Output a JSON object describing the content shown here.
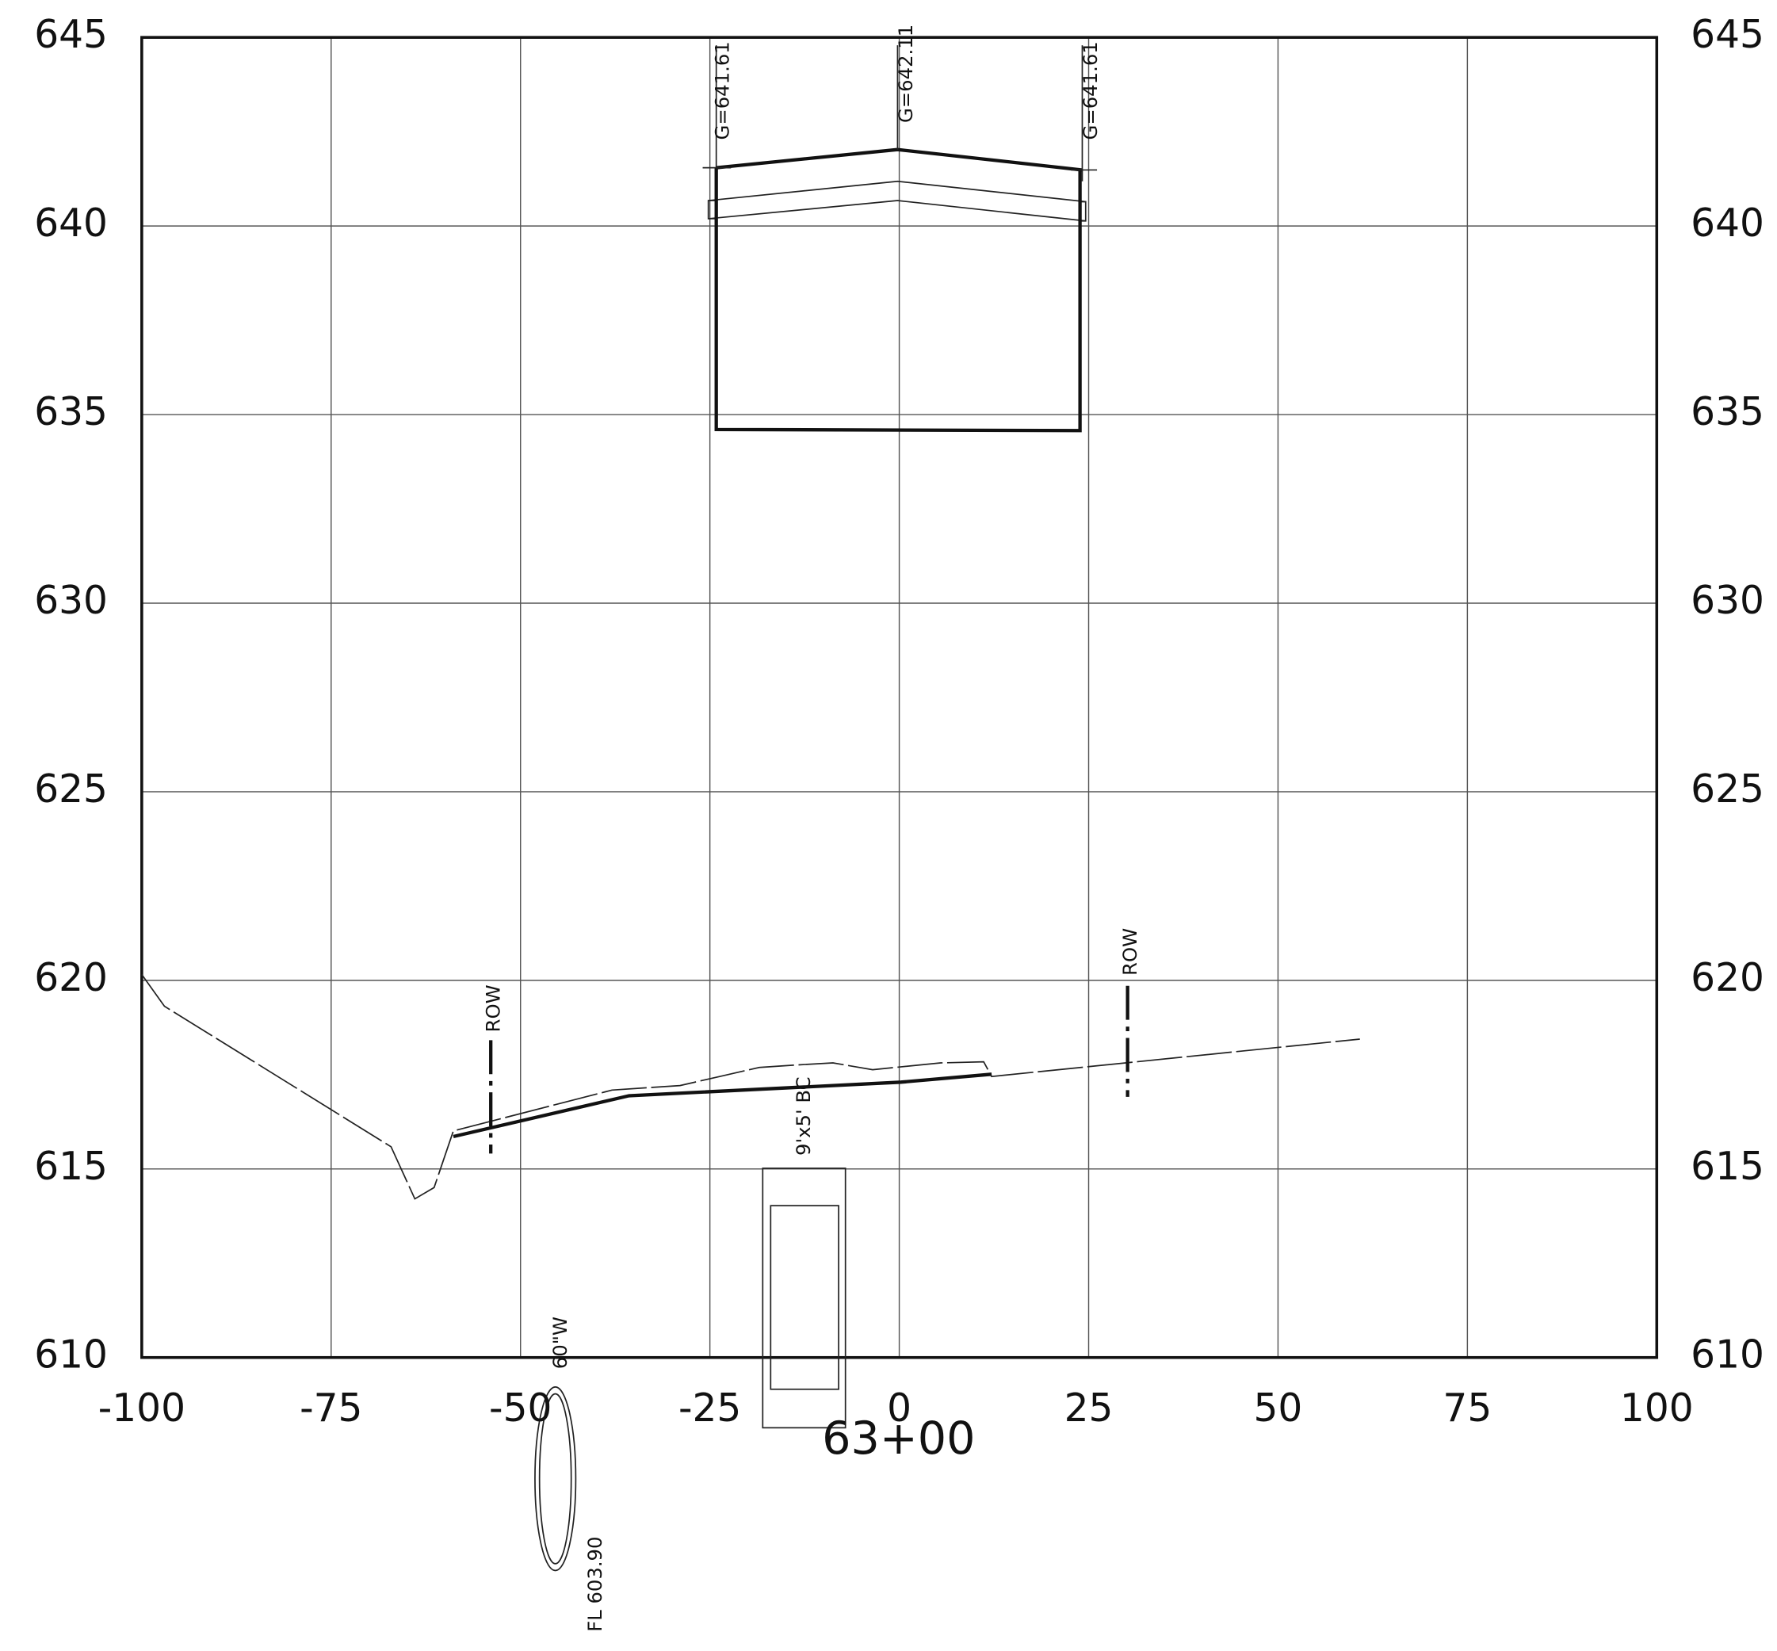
{
  "axes": {
    "xticks": [
      -100,
      -75,
      -50,
      -25,
      0,
      25,
      50,
      75,
      100
    ],
    "yticks": [
      645,
      640,
      635,
      630,
      625,
      620,
      615,
      610
    ],
    "xlim": [
      -100,
      100
    ],
    "ylim": [
      610,
      645
    ]
  },
  "annotations": {
    "grade_left": "G=641.61",
    "grade_center": "G=642.11",
    "grade_right": "G=641.61",
    "row_left": "ROW",
    "row_right": "ROW",
    "culvert": "9'x5' BC",
    "station": "63+00",
    "pipe": "60\"W",
    "flowline": "FL 603.90"
  }
}
